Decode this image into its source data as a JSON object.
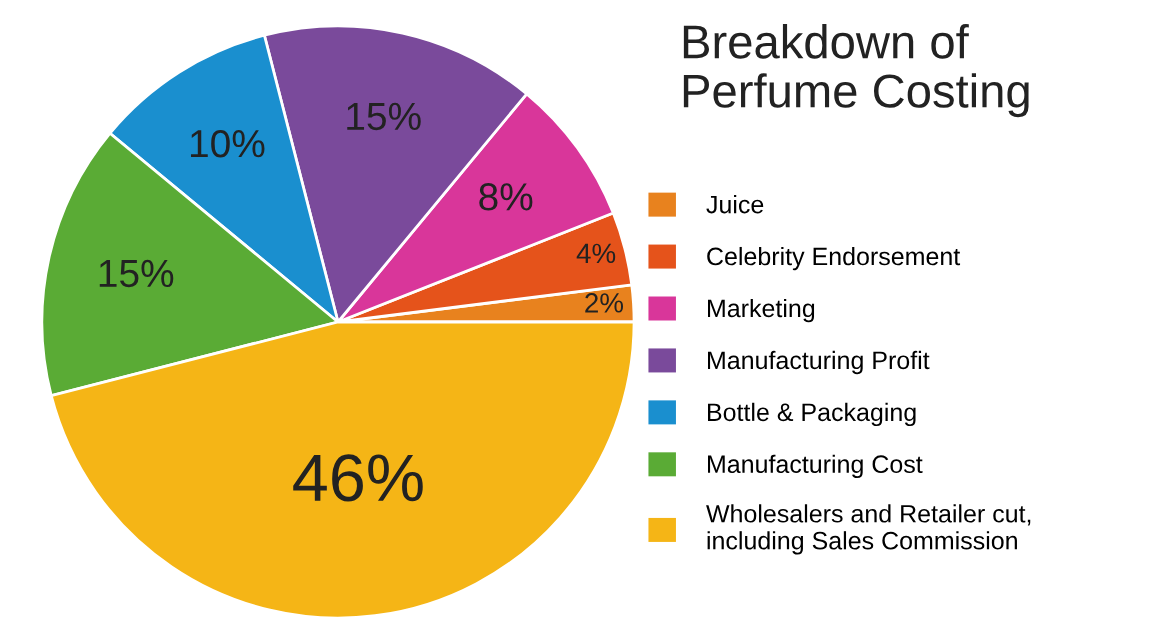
{
  "chart_data": {
    "type": "pie",
    "title": "Breakdown of\nPerfume Costing",
    "categories": [
      "Juice",
      "Celebrity Endorsement",
      "Marketing",
      "Manufacturing Profit",
      "Bottle & Packaging",
      "Manufacturing Cost",
      "Wholesalers and Retailer cut,\nincluding Sales Commission"
    ],
    "values": [
      2,
      4,
      8,
      15,
      10,
      15,
      46
    ],
    "colors": [
      "#e8821e",
      "#e5531b",
      "#d9369a",
      "#7a4a9b",
      "#1a8fcf",
      "#5aab35",
      "#f5b516"
    ],
    "value_labels": [
      "2%",
      "4%",
      "8%",
      "15%",
      "10%",
      "15%",
      "46%"
    ],
    "legend": "right"
  }
}
